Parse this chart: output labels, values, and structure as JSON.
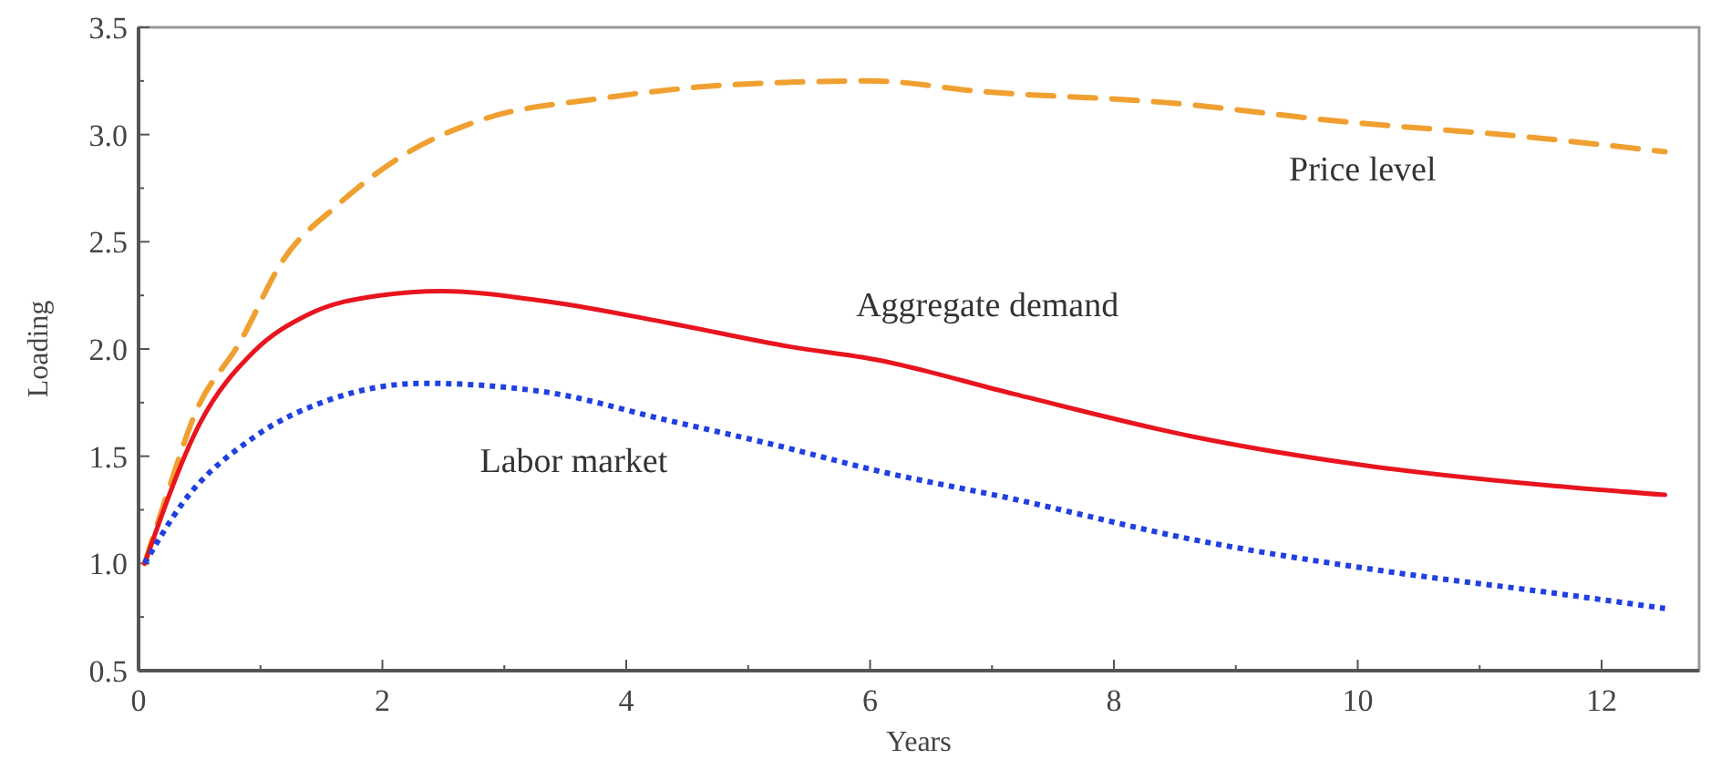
{
  "chart_data": {
    "type": "line",
    "xlabel": "Years",
    "ylabel": "Loading",
    "xlim": [
      0,
      12.8
    ],
    "ylim": [
      0.5,
      3.5
    ],
    "xticks": [
      0,
      {
        "value": 1,
        "label": null
      },
      2,
      {
        "value": 3,
        "label": null
      },
      4,
      {
        "value": 5,
        "label": null
      },
      6,
      {
        "value": 7,
        "label": null
      },
      8,
      {
        "value": 9,
        "label": null
      },
      10,
      {
        "value": 11,
        "label": null
      },
      12
    ],
    "yticks": [
      0.5,
      {
        "value": 0.75,
        "label": null
      },
      "1.0",
      {
        "value": 1.25,
        "label": null
      },
      1.5,
      {
        "value": 1.75,
        "label": null
      },
      "2.0",
      {
        "value": 2.25,
        "label": null
      },
      2.5,
      {
        "value": 2.75,
        "label": null
      },
      "3.0",
      {
        "value": 3.25,
        "label": null
      },
      3.5
    ],
    "grid": false,
    "series": [
      {
        "name": "Price level",
        "color": "#f0a030",
        "line_style": "dashed",
        "x": [
          0.05,
          0.25,
          0.45,
          0.84,
          1.18,
          1.63,
          2.22,
          2.82,
          3.81,
          4.8,
          6.0,
          6.93,
          8.41,
          9.89,
          11.37,
          12.52
        ],
        "values": [
          1.0,
          1.35,
          1.68,
          2.04,
          2.41,
          2.67,
          2.92,
          3.07,
          3.17,
          3.23,
          3.25,
          3.2,
          3.15,
          3.06,
          2.99,
          2.92
        ]
      },
      {
        "name": "Aggregate demand",
        "color": "#e8141e",
        "line_style": "solid",
        "x": [
          0.05,
          0.5,
          0.95,
          1.39,
          1.98,
          2.48,
          3.37,
          4.36,
          5.35,
          6.05,
          7.18,
          8.66,
          10.15,
          11.63,
          12.52
        ],
        "values": [
          1.0,
          1.65,
          1.99,
          2.16,
          2.25,
          2.27,
          2.22,
          2.12,
          2.01,
          1.95,
          1.79,
          1.59,
          1.45,
          1.36,
          1.32
        ]
      },
      {
        "name": "Labor market",
        "color": "#2040e0",
        "line_style": "dotted",
        "x": [
          0.05,
          0.36,
          0.95,
          1.55,
          2.34,
          3.33,
          4.32,
          5.31,
          6.0,
          7.18,
          8.66,
          10.15,
          11.63,
          12.52
        ],
        "values": [
          1.0,
          1.28,
          1.59,
          1.76,
          1.84,
          1.8,
          1.67,
          1.54,
          1.44,
          1.3,
          1.11,
          0.97,
          0.86,
          0.79
        ]
      }
    ]
  }
}
